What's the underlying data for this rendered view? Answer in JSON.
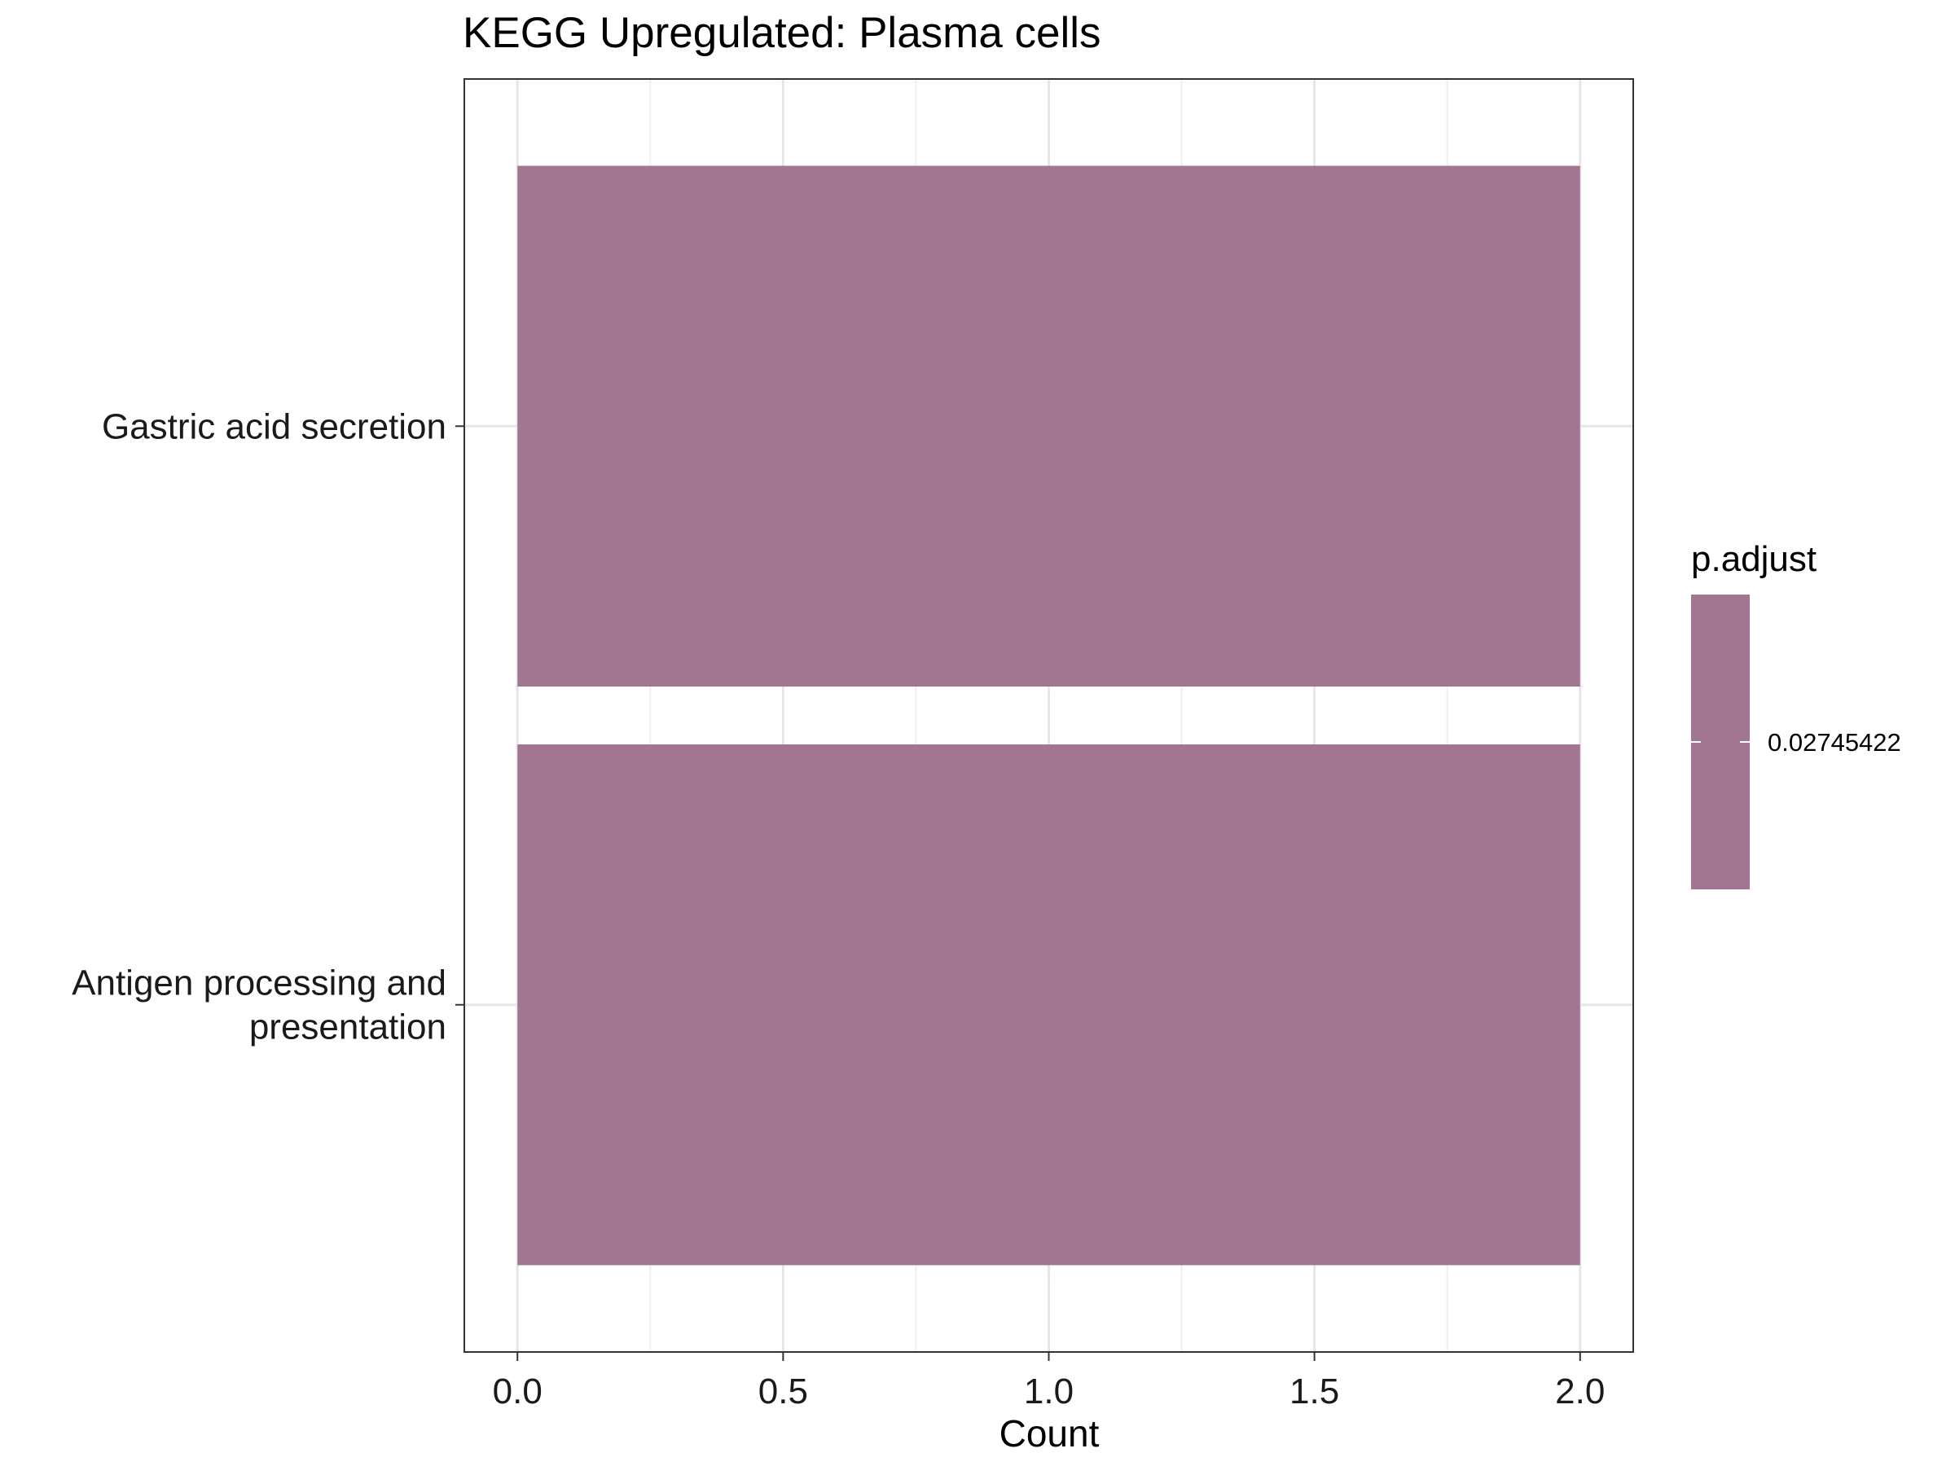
{
  "chart_data": {
    "type": "bar",
    "orientation": "horizontal",
    "title": "KEGG Upregulated: Plasma cells",
    "xlabel": "Count",
    "ylabel": "",
    "xlim": [
      -0.1,
      2.1
    ],
    "x_ticks": [
      "0.0",
      "0.5",
      "1.0",
      "1.5",
      "2.0"
    ],
    "x_tick_values": [
      0,
      0.5,
      1,
      1.5,
      2
    ],
    "categories": [
      [
        "Gastric acid secretion"
      ],
      [
        "Antigen processing and",
        "presentation"
      ]
    ],
    "values": [
      2,
      2
    ],
    "p_adjust": [
      0.02745422,
      0.02745422
    ],
    "bar_color": "#a27690",
    "grid": true,
    "legend": {
      "title": "p.adjust",
      "label": "0.02745422",
      "placement": "right",
      "color": "#a27690"
    }
  }
}
